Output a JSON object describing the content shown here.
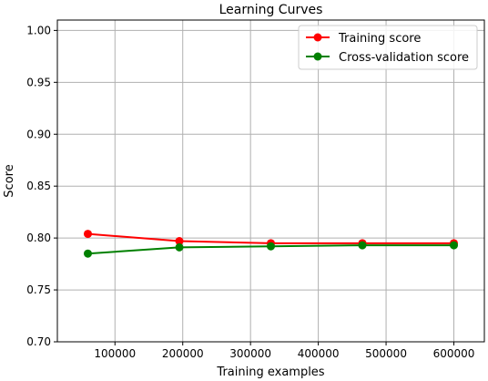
{
  "chart_data": {
    "type": "line",
    "title": "Learning Curves",
    "xlabel": "Training examples",
    "ylabel": "Score",
    "x": [
      60000,
      195000,
      330000,
      465000,
      600000
    ],
    "xlim": [
      15000,
      645000
    ],
    "ylim": [
      0.7,
      1.01
    ],
    "xticks": [
      100000,
      200000,
      300000,
      400000,
      500000,
      600000
    ],
    "xtick_labels": [
      "100000",
      "200000",
      "300000",
      "400000",
      "500000",
      "600000"
    ],
    "yticks": [
      0.7,
      0.75,
      0.8,
      0.85,
      0.9,
      0.95,
      1.0
    ],
    "ytick_labels": [
      "0.70",
      "0.75",
      "0.80",
      "0.85",
      "0.90",
      "0.95",
      "1.00"
    ],
    "grid": true,
    "legend_position": "upper-right",
    "series": [
      {
        "name": "Training score",
        "color": "#ff0000",
        "values": [
          0.804,
          0.797,
          0.795,
          0.795,
          0.795
        ]
      },
      {
        "name": "Cross-validation score",
        "color": "#008000",
        "values": [
          0.785,
          0.791,
          0.792,
          0.793,
          0.793
        ]
      }
    ]
  }
}
